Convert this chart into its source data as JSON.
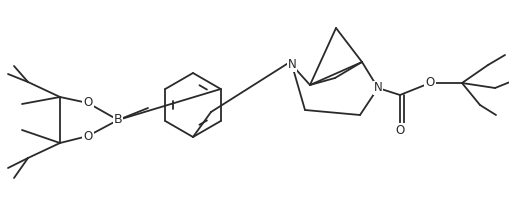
{
  "bg_color": "#ffffff",
  "line_color": "#2a2a2a",
  "line_width": 1.3,
  "font_size": 8.5,
  "figsize": [
    5.1,
    2.15
  ],
  "dpi": 100,
  "xlim": [
    0,
    510
  ],
  "ylim": [
    0,
    215
  ]
}
